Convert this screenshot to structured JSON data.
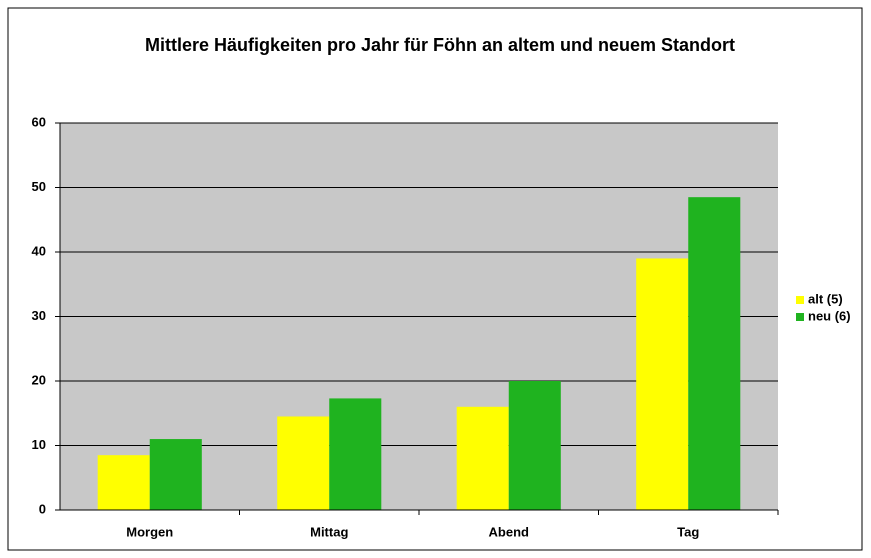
{
  "chart_data": {
    "type": "bar",
    "title": "Mittlere Häufigkeiten pro Jahr für Föhn an altem und neuem Standort",
    "categories": [
      "Morgen",
      "Mittag",
      "Abend",
      "Tag"
    ],
    "series": [
      {
        "name": "alt (5)",
        "color": "#ffff00",
        "values": [
          8.5,
          14.5,
          16,
          39
        ]
      },
      {
        "name": "neu (6)",
        "color": "#1fb31f",
        "values": [
          11,
          17.3,
          20,
          48.5
        ]
      }
    ],
    "ylim": [
      0,
      60
    ],
    "yticks": [
      0,
      10,
      20,
      30,
      40,
      50,
      60
    ],
    "grid": true,
    "legend": "right"
  }
}
